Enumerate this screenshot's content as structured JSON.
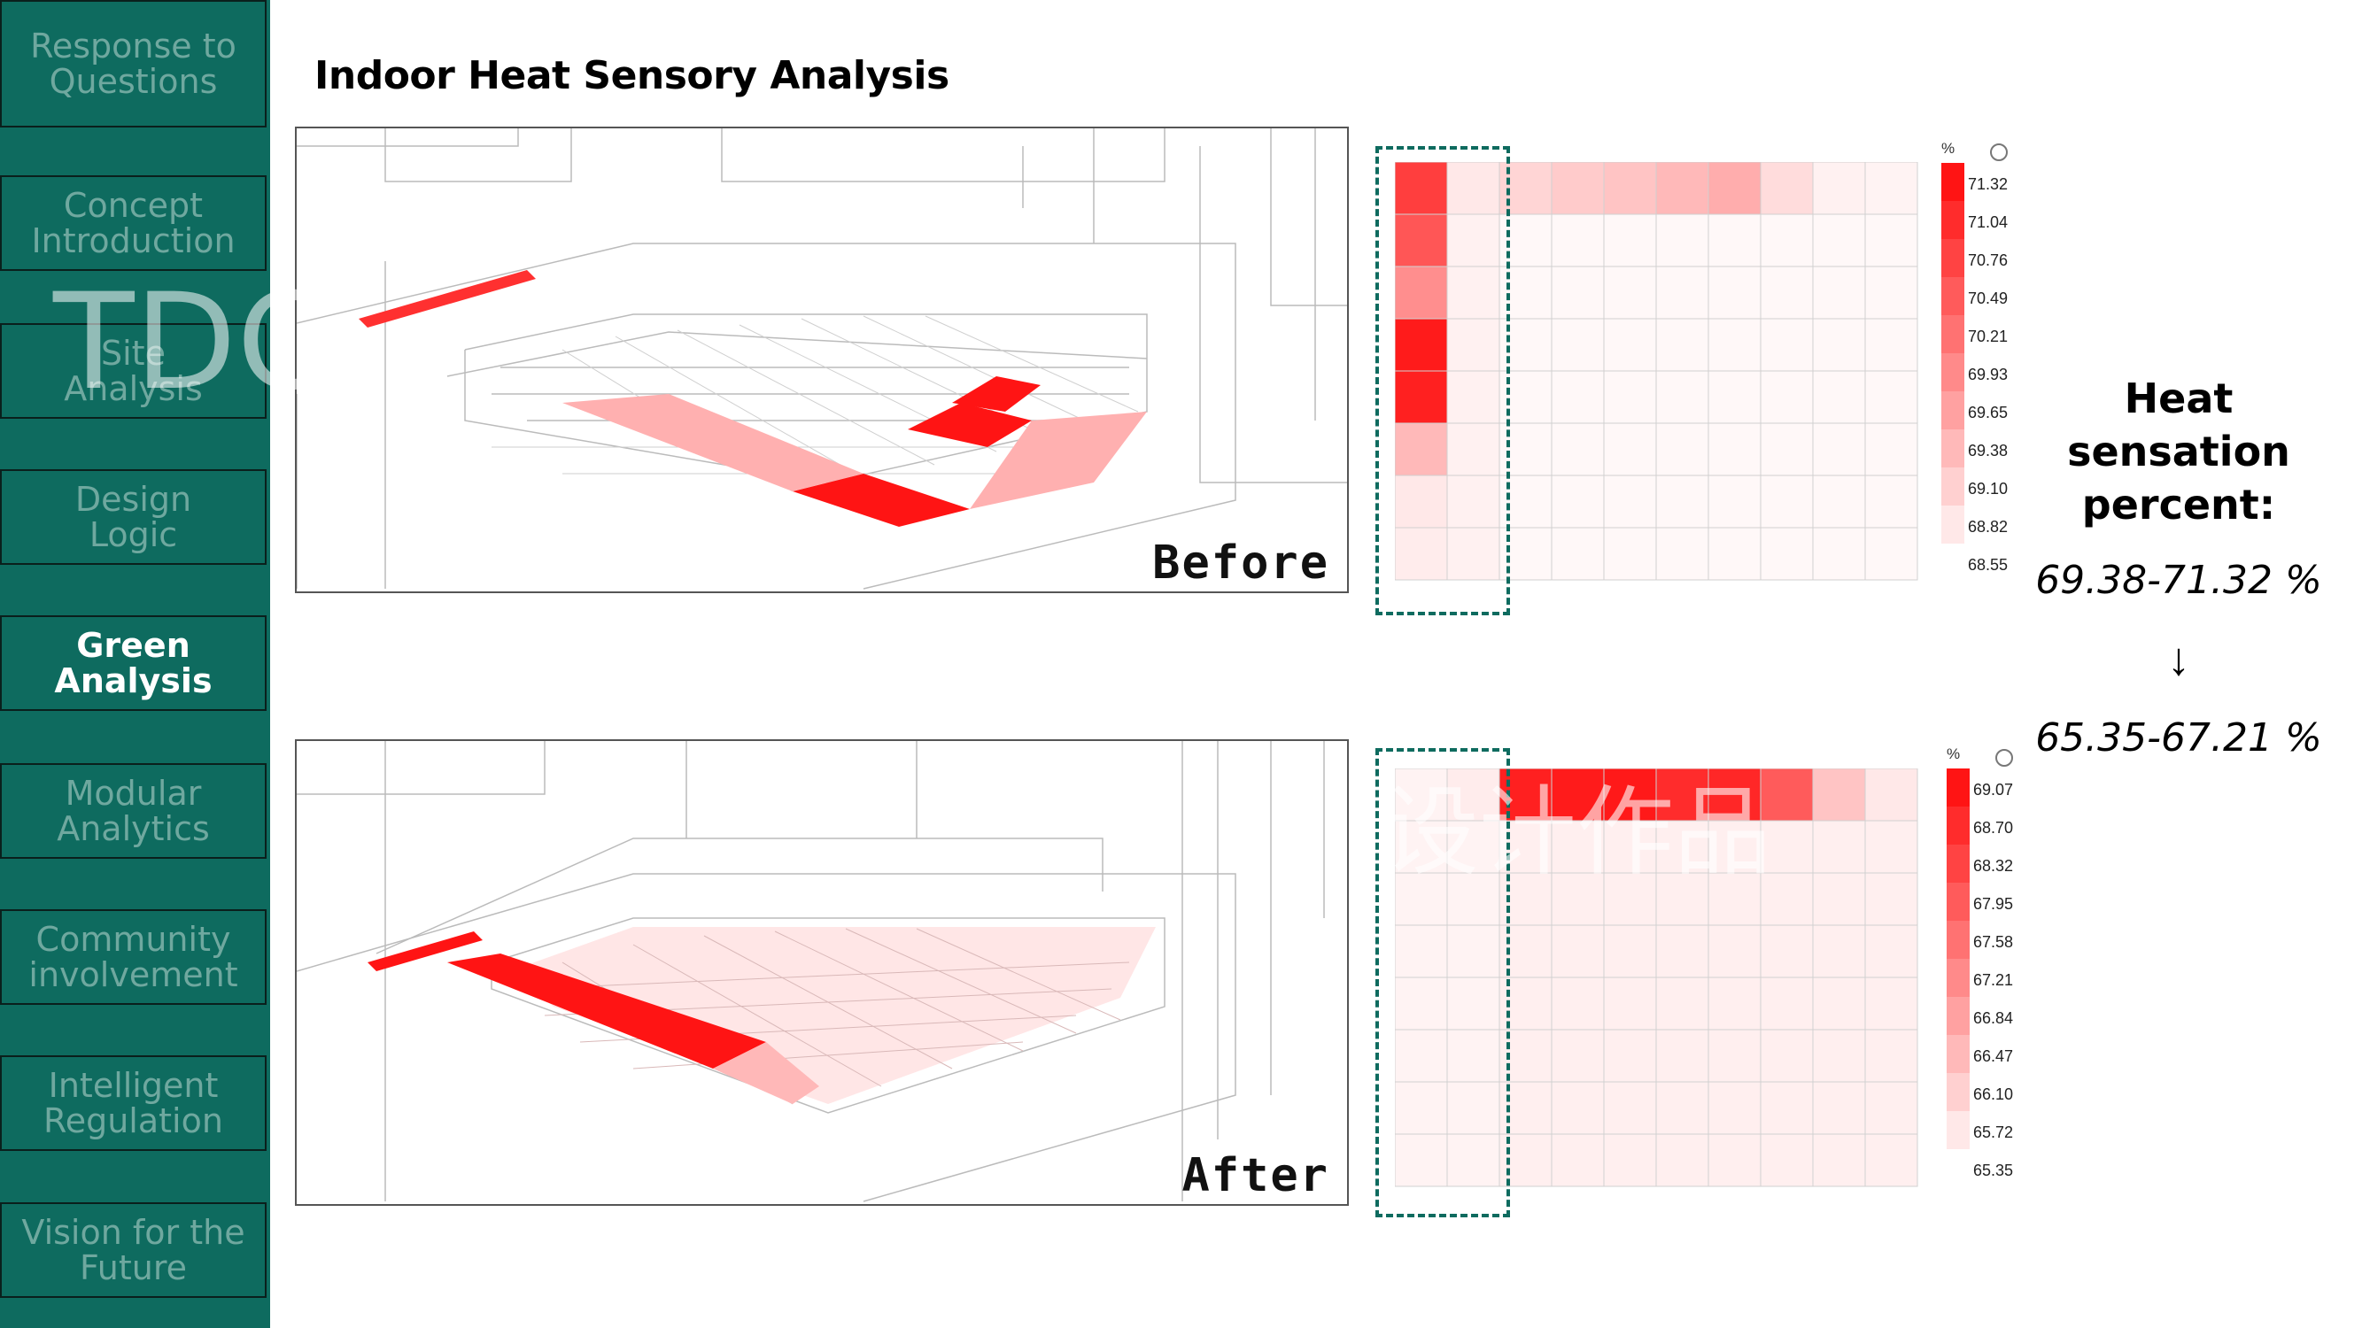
{
  "sidebar": {
    "items": [
      {
        "label": "Response to\nQuestions",
        "active": false
      },
      {
        "label": "Concept\nIntroduction",
        "active": false
      },
      {
        "label": "Site\nAnalysis",
        "active": false
      },
      {
        "label": "Design\nLogic",
        "active": false
      },
      {
        "label": "Green\nAnalysis",
        "active": true
      },
      {
        "label": "Modular\nAnalytics",
        "active": false
      },
      {
        "label": "Community\ninvolvement",
        "active": false
      },
      {
        "label": "Intelligent\nRegulation",
        "active": false
      },
      {
        "label": "Vision for the\nFuture",
        "active": false
      }
    ]
  },
  "page_title": "Indoor Heat Sensory Analysis",
  "panels": {
    "before_label": "Before",
    "after_label": "After"
  },
  "legend_before": {
    "unit": "%",
    "values": [
      "71.32",
      "71.04",
      "70.76",
      "70.49",
      "70.21",
      "69.93",
      "69.65",
      "69.38",
      "69.10",
      "68.82",
      "68.55"
    ]
  },
  "legend_after": {
    "unit": "%",
    "values": [
      "69.07",
      "68.70",
      "68.32",
      "67.95",
      "67.58",
      "67.21",
      "66.84",
      "66.47",
      "66.10",
      "65.72",
      "65.35"
    ]
  },
  "heatmap_before": {
    "first_column_levels": [
      0.82,
      0.72,
      0.48,
      0.97,
      0.95,
      0.3,
      0.1,
      0.08
    ],
    "top_row_levels": [
      0.82,
      0.1,
      0.18,
      0.22,
      0.25,
      0.3,
      0.35,
      0.15,
      0.06,
      0.05
    ]
  },
  "heatmap_after": {
    "top_row_levels": [
      0.05,
      0.08,
      0.95,
      0.97,
      0.98,
      0.9,
      0.92,
      0.7,
      0.25,
      0.1
    ]
  },
  "summary": {
    "title": "Heat\nsensation\npercent:",
    "before_range": "69.38-71.32 %",
    "arrow": "↓",
    "after_range": "65.35-67.21 %"
  },
  "watermark": {
    "text_latin": "TDC",
    "text_cjk": "设计作品"
  },
  "colors": {
    "sidebar_bg": "#0e6b5f",
    "sidebar_text": "#6fa89f",
    "active_text": "#ffffff",
    "heat_max": "#ff1414",
    "heat_min": "#ffffff",
    "dash": "#0e6b5f"
  }
}
